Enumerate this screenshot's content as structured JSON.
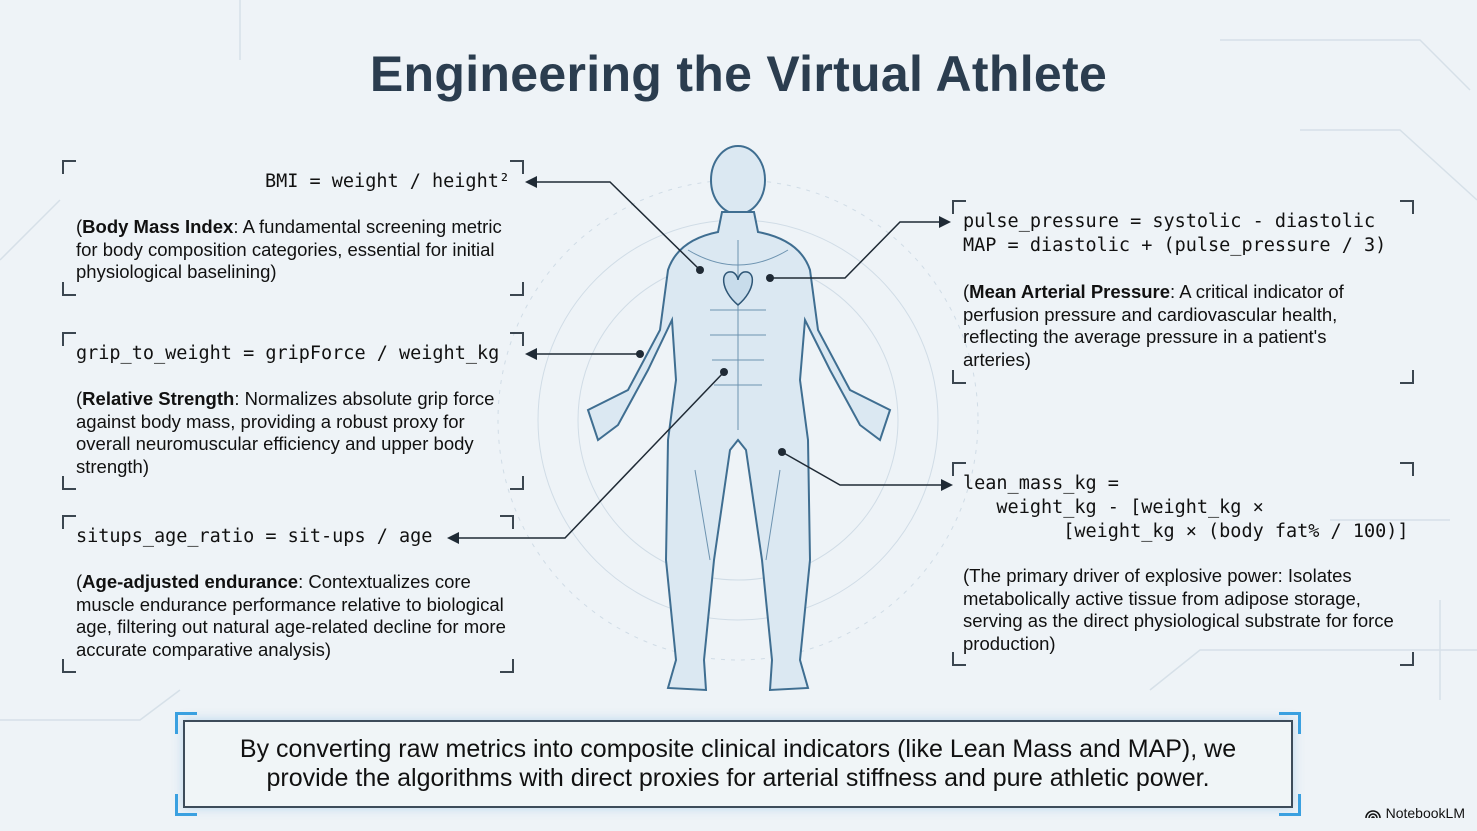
{
  "title": "Engineering the Virtual Athlete",
  "metrics": [
    {
      "formula": "BMI = weight / height²",
      "term": "Body Mass Index",
      "description": ": A fundamental screening metric for body composition categories, essential for initial physiological baselining)"
    },
    {
      "formula": "grip_to_weight = gripForce / weight_kg",
      "term": "Relative Strength",
      "description": ": Normalizes absolute grip force against body mass, providing a robust proxy for overall neuromuscular efficiency and upper body strength)"
    },
    {
      "formula": "situps_age_ratio = sit-ups / age",
      "term": "Age-adjusted endurance",
      "description": ": Contextualizes core muscle endurance performance relative to biological age, filtering out natural age-related decline for more accurate comparative analysis)"
    },
    {
      "formula": "pulse_pressure = systolic - diastolic\nMAP = diastolic + (pulse_pressure / 3)",
      "term": "Mean Arterial Pressure",
      "description": ": A critical indicator of perfusion pressure and cardiovascular health, reflecting the average pressure in a patient's arteries)"
    },
    {
      "formula": "lean_mass_kg =\n   weight_kg - [weight_kg ×\n         [weight_kg × (body fat% / 100)]",
      "term": "",
      "description": "The primary driver of explosive power: Isolates metabolically active tissue from adipose storage, serving as the direct physiological substrate for force production)"
    }
  ],
  "summary": "By converting raw metrics into composite clinical indicators (like Lean Mass and MAP), we provide the algorithms with direct proxies for arterial stiffness and pure athletic power.",
  "brand": {
    "name": "NotebookLM",
    "icon": "notebooklm-logo-icon"
  },
  "colors": {
    "title": "#2b3d4f",
    "accent": "#3aa0e0",
    "figure": "#3f6e91"
  }
}
